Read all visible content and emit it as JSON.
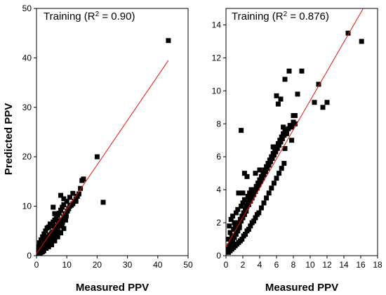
{
  "chart_data": [
    {
      "type": "scatter",
      "annotation": "Training (R2 = 0.90)",
      "annotation_parts": [
        "Training (R",
        "2",
        " = 0.90)"
      ],
      "xlabel": "Measured PPV",
      "ylabel": "Predicted PPV",
      "xlim": [
        0,
        50
      ],
      "ylim": [
        0,
        50
      ],
      "xticks": [
        0,
        10,
        20,
        30,
        40,
        50
      ],
      "yticks": [
        0,
        10,
        20,
        30,
        40,
        50
      ],
      "fit_line": {
        "x": [
          0,
          43.5
        ],
        "y": [
          0.4,
          39.5
        ],
        "color": "#e8130c"
      },
      "marker_color": "#000000",
      "series": [
        {
          "x": [
            0.2,
            0.4,
            0.6,
            0.8,
            1.0,
            1.2,
            1.5,
            1.8,
            2.0,
            2.2,
            2.5,
            2.8,
            3.0,
            3.2,
            3.5,
            3.8,
            4.0,
            4.3,
            4.6,
            5.0,
            5.3,
            5.6,
            6.0,
            6.3,
            6.6,
            7.0,
            7.3,
            7.6,
            8.0,
            8.3,
            8.6,
            9.0,
            9.4,
            9.8,
            10.2,
            10.6,
            11.0,
            11.5,
            12.0,
            12.5,
            13.0,
            13.5,
            14.0,
            0.5,
            1.0,
            1.5,
            2.0,
            2.5,
            3.0,
            3.5,
            4.0,
            4.5,
            5.0,
            5.5,
            6.0,
            6.5,
            7.0,
            7.5,
            8.0,
            8.5,
            9.0,
            10.0,
            11.0,
            12.0,
            1.2,
            2.4,
            3.6,
            4.8,
            6.0,
            7.2,
            8.4,
            9.6,
            0.8,
            1.6,
            3.2,
            4.4,
            5.6,
            6.8,
            2.0,
            4.0,
            5.0,
            6.0,
            7.0,
            8.0,
            9.0,
            43.5,
            20.0,
            22.0,
            14.5,
            15.5,
            15.0,
            13.0,
            8.0,
            9.0,
            6.0,
            5.5
          ],
          "y": [
            0.3,
            0.8,
            0.4,
            1.2,
            0.6,
            1.5,
            1.0,
            2.0,
            1.4,
            2.5,
            1.8,
            3.0,
            2.2,
            3.4,
            2.8,
            3.8,
            3.2,
            4.2,
            3.6,
            4.5,
            4.8,
            4.2,
            5.5,
            5.0,
            6.0,
            5.8,
            6.5,
            6.2,
            7.0,
            7.2,
            6.8,
            7.8,
            8.5,
            8.0,
            9.0,
            9.5,
            10.0,
            10.2,
            10.5,
            11.0,
            11.5,
            12.0,
            12.5,
            1.8,
            2.6,
            3.2,
            3.8,
            4.4,
            5.0,
            5.6,
            5.8,
            6.4,
            6.0,
            6.8,
            7.2,
            7.5,
            8.2,
            8.6,
            9.2,
            9.8,
            10.3,
            11.0,
            11.8,
            12.6,
            0.5,
            1.0,
            2.0,
            2.8,
            3.5,
            4.8,
            6.0,
            7.2,
            0.2,
            0.7,
            1.5,
            2.2,
            3.0,
            4.0,
            0.8,
            1.8,
            2.2,
            3.0,
            3.8,
            4.6,
            5.5,
            43.5,
            20.0,
            10.8,
            13.6,
            15.5,
            15.2,
            11.0,
            12.2,
            11.5,
            8.5,
            9.8
          ]
        }
      ]
    },
    {
      "type": "scatter",
      "annotation": "Training (R2 = 0.876)",
      "annotation_parts": [
        "Training (R",
        "2",
        " = 0.876)"
      ],
      "xlabel": "Measured PPV",
      "ylabel": "",
      "xlim": [
        0,
        18
      ],
      "ylim": [
        0,
        15
      ],
      "xticks": [
        0,
        2,
        4,
        6,
        8,
        10,
        12,
        14,
        16,
        18
      ],
      "yticks": [
        0,
        2,
        4,
        6,
        8,
        10,
        12,
        14
      ],
      "fit_line": {
        "x": [
          0,
          16.3
        ],
        "y": [
          0.55,
          15.0
        ],
        "color": "#e8130c"
      },
      "marker_color": "#000000",
      "series": [
        {
          "x": [
            0.2,
            0.3,
            0.4,
            0.5,
            0.6,
            0.7,
            0.8,
            0.9,
            1.0,
            1.1,
            1.2,
            1.3,
            1.4,
            1.5,
            1.6,
            1.7,
            1.8,
            1.9,
            2.0,
            2.1,
            2.2,
            2.3,
            2.4,
            2.5,
            2.6,
            2.7,
            2.8,
            2.9,
            3.0,
            3.1,
            3.2,
            3.3,
            3.4,
            3.5,
            3.6,
            3.7,
            3.8,
            3.9,
            4.0,
            4.1,
            4.2,
            4.3,
            4.4,
            4.5,
            4.6,
            4.7,
            4.8,
            4.9,
            5.0,
            5.1,
            5.2,
            5.3,
            5.4,
            5.5,
            5.6,
            5.7,
            5.8,
            5.9,
            6.0,
            6.1,
            6.2,
            6.3,
            6.4,
            6.5,
            6.6,
            6.7,
            6.8,
            6.9,
            7.0,
            7.2,
            7.4,
            7.6,
            7.8,
            8.0,
            8.2,
            0.3,
            0.5,
            0.7,
            0.9,
            1.1,
            1.3,
            1.5,
            1.7,
            1.9,
            2.1,
            2.3,
            2.5,
            2.7,
            2.9,
            3.1,
            3.3,
            3.5,
            3.7,
            3.9,
            4.2,
            4.5,
            4.8,
            5.1,
            5.4,
            5.7,
            6.0,
            6.3,
            6.6,
            6.9,
            0.4,
            0.6,
            0.8,
            1.0,
            1.2,
            1.4,
            1.6,
            1.8,
            2.0,
            2.2,
            2.4,
            2.6,
            2.8,
            3.0,
            2.0,
            2.5,
            3.0,
            3.5,
            4.0,
            1.5,
            1.8,
            2.2,
            6.0,
            6.5,
            7.0,
            7.2,
            7.5,
            8.0,
            8.5,
            9.0,
            10.5,
            11.0,
            11.5,
            12.0,
            14.5,
            16.1,
            7.0,
            6.8,
            7.8,
            8.2,
            5.6,
            6.2
          ],
          "y": [
            0.4,
            1.0,
            0.6,
            1.4,
            0.8,
            1.2,
            0.9,
            1.6,
            1.1,
            1.8,
            1.3,
            2.0,
            1.5,
            1.9,
            1.7,
            2.2,
            2.1,
            2.4,
            2.3,
            2.6,
            2.5,
            2.8,
            2.9,
            3.0,
            3.2,
            3.1,
            3.4,
            3.3,
            3.6,
            3.5,
            3.8,
            3.7,
            4.0,
            3.9,
            4.2,
            4.1,
            4.4,
            4.3,
            4.6,
            4.5,
            4.8,
            4.7,
            5.0,
            4.9,
            5.2,
            5.1,
            5.4,
            5.3,
            5.6,
            5.5,
            5.8,
            5.7,
            6.0,
            5.9,
            6.2,
            6.1,
            6.4,
            6.3,
            6.6,
            6.5,
            6.8,
            6.7,
            7.0,
            6.9,
            7.2,
            7.1,
            7.4,
            7.3,
            7.6,
            7.4,
            7.7,
            7.9,
            7.8,
            8.1,
            8.0,
            0.2,
            0.3,
            0.4,
            0.5,
            0.6,
            0.7,
            0.8,
            0.9,
            1.0,
            1.2,
            1.3,
            1.5,
            1.6,
            1.8,
            2.0,
            2.1,
            2.3,
            2.5,
            2.6,
            2.9,
            3.2,
            3.5,
            3.8,
            4.1,
            4.4,
            4.7,
            5.0,
            5.3,
            5.6,
            1.8,
            2.2,
            2.4,
            2.0,
            2.6,
            2.8,
            1.9,
            3.0,
            3.2,
            3.4,
            2.7,
            3.6,
            3.8,
            4.0,
            3.8,
            4.8,
            4.0,
            5.0,
            5.2,
            3.8,
            7.6,
            5.0,
            9.7,
            9.5,
            10.7,
            7.5,
            11.2,
            8.5,
            9.8,
            11.2,
            9.3,
            10.4,
            9.0,
            9.3,
            13.5,
            13.0,
            6.5,
            7.8,
            7.0,
            8.5,
            6.6,
            9.2
          ]
        }
      ]
    }
  ]
}
